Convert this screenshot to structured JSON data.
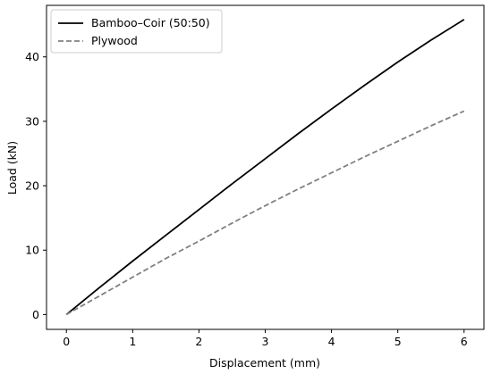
{
  "chart_data": {
    "type": "line",
    "title": "",
    "xlabel": "Displacement (mm)",
    "ylabel": "Load (kN)",
    "xlim": [
      -0.3,
      6.3
    ],
    "ylim": [
      -2.3,
      48
    ],
    "xticks": [
      0,
      1,
      2,
      3,
      4,
      5,
      6
    ],
    "yticks": [
      0,
      10,
      20,
      30,
      40
    ],
    "grid": false,
    "legend_position": "top-left",
    "series": [
      {
        "name": "Bamboo–Coir (50:50)",
        "color": "#000000",
        "style": "solid",
        "x": [
          0,
          0.5,
          1,
          1.5,
          2,
          2.5,
          3,
          3.5,
          4,
          4.5,
          5,
          5.5,
          6
        ],
        "y": [
          0,
          4.2,
          8.3,
          12.3,
          16.3,
          20.3,
          24.2,
          28.1,
          31.9,
          35.6,
          39.2,
          42.6,
          45.8
        ]
      },
      {
        "name": "Plywood",
        "color": "#808080",
        "style": "dashed",
        "x": [
          0,
          0.5,
          1,
          1.5,
          2,
          2.5,
          3,
          3.5,
          4,
          4.5,
          5,
          5.5,
          6
        ],
        "y": [
          0,
          2.9,
          5.8,
          8.7,
          11.4,
          14.2,
          16.9,
          19.5,
          22.0,
          24.5,
          26.9,
          29.3,
          31.6
        ]
      }
    ]
  }
}
